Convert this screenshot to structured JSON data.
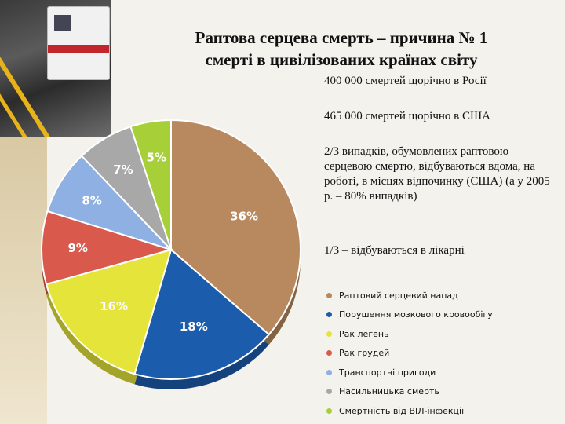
{
  "title": {
    "line1": "Раптова серцева смерть – причина № 1",
    "line2": "смерті в цивілізованих країнах світу"
  },
  "facts": [
    "400 000 смертей щорічно в Росії",
    "465 000 смертей щорічно в США",
    "2/3 випадків, обумовлених раптовою серцевою смертю, відбуваються вдома, на роботі, в місцях відпочинку (США) (а у 2005 р. – 80% випадків)",
    "1/3 – відбуваються в лікарні"
  ],
  "chart_data": {
    "type": "pie",
    "title": "",
    "slices": [
      {
        "name": "Раптовий серцевий напад",
        "value": 36,
        "label": "36%",
        "color": "#b8895e"
      },
      {
        "name": "Порушення мозкового кровообігу",
        "value": 18,
        "label": "18%",
        "color": "#1c5cac"
      },
      {
        "name": "Рак легень",
        "value": 16,
        "label": "16%",
        "color": "#e4e43a"
      },
      {
        "name": "Рак грудей",
        "value": 9,
        "label": "9%",
        "color": "#d95a4c"
      },
      {
        "name": "Транспортні пригоди",
        "value": 8,
        "label": "8%",
        "color": "#8fb0e2"
      },
      {
        "name": "Насильницька смерть",
        "value": 7,
        "label": "7%",
        "color": "#a8a8a8"
      },
      {
        "name": "Смертність від ВІЛ-інфекції",
        "value": 5,
        "label": "5%",
        "color": "#a6cf38"
      }
    ],
    "legend_placement": "bottom-right"
  }
}
